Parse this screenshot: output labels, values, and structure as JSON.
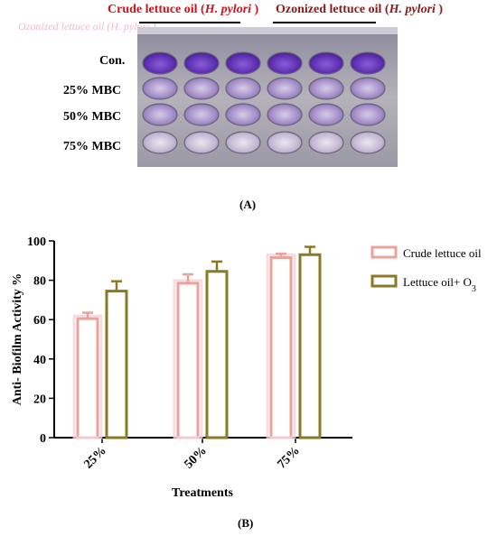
{
  "panel_a": {
    "header_left": "Crude lettuce oil (H. pylori )",
    "header_right": "Ozonized lettuce oil (H. pylori )",
    "ghost_text": "Ozonized lettuce oil (H. pylori )",
    "row_labels": [
      "Con.",
      "25% MBC",
      "50% MBC",
      "75% MBC"
    ],
    "label": "(A)"
  },
  "panel_b_label": "(B)",
  "chart_data": {
    "type": "bar",
    "categories": [
      "25%",
      "50%",
      "75%"
    ],
    "series": [
      {
        "name": "Crude lettuce oil",
        "values": [
          60.5,
          78.5,
          91.5
        ],
        "errors": [
          3,
          4.5,
          2
        ],
        "color": "#e8a39a"
      },
      {
        "name": "Lettuce oil+ O3",
        "values": [
          74.5,
          84.5,
          93
        ],
        "errors": [
          5,
          5,
          4
        ],
        "color": "#8a7a24"
      }
    ],
    "xlabel": "Treatments",
    "ylabel": "Anti- Biofilm Activity %",
    "ylim": [
      0,
      100
    ],
    "yticks": [
      "0",
      "20",
      "40",
      "60",
      "80",
      "100"
    ],
    "legend_position": "right"
  }
}
